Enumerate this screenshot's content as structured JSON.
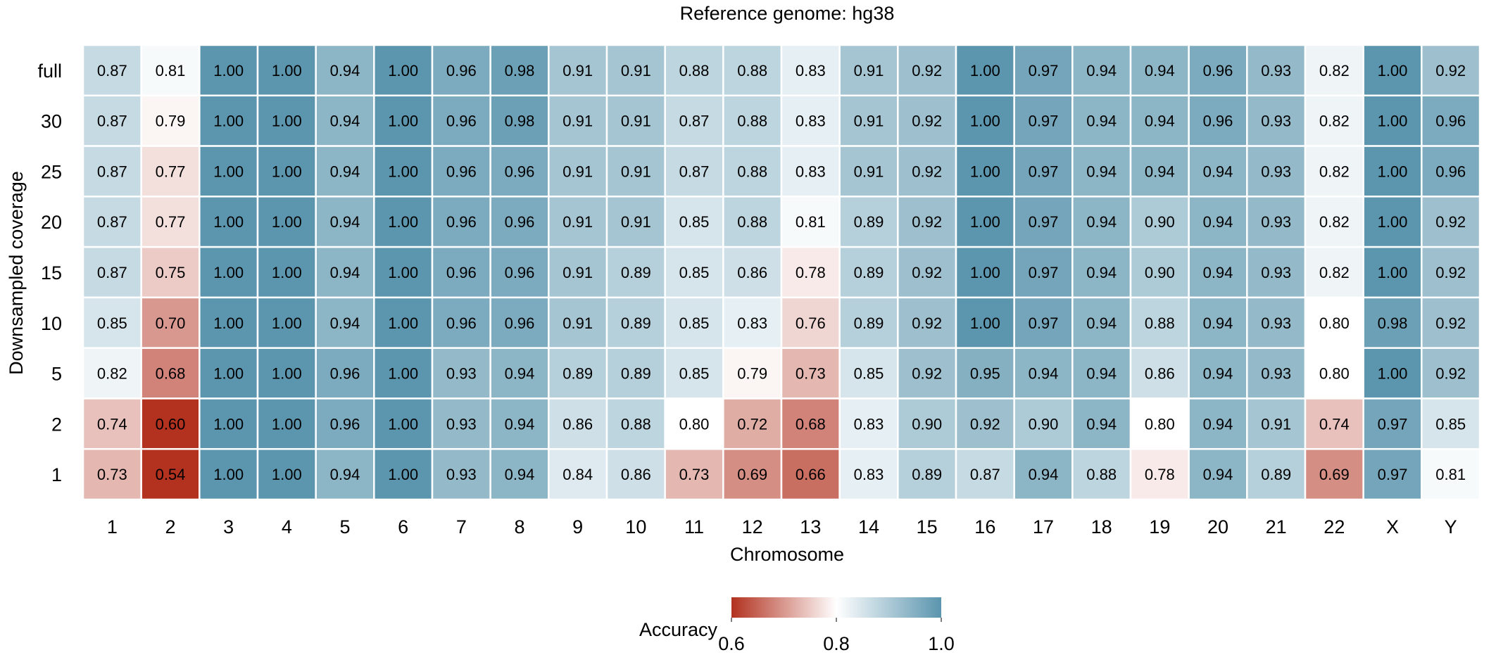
{
  "chart_data": {
    "type": "heatmap",
    "title": "Reference genome: hg38",
    "xlabel": "Chromosome",
    "ylabel": "Downsampled coverage",
    "x_categories": [
      "1",
      "2",
      "3",
      "4",
      "5",
      "6",
      "7",
      "8",
      "9",
      "10",
      "11",
      "12",
      "13",
      "14",
      "15",
      "16",
      "17",
      "18",
      "19",
      "20",
      "21",
      "22",
      "X",
      "Y"
    ],
    "y_categories": [
      "full",
      "30",
      "25",
      "20",
      "15",
      "10",
      "5",
      "2",
      "1"
    ],
    "values": [
      [
        0.87,
        0.81,
        1.0,
        1.0,
        0.94,
        1.0,
        0.96,
        0.98,
        0.91,
        0.91,
        0.88,
        0.88,
        0.83,
        0.91,
        0.92,
        1.0,
        0.97,
        0.94,
        0.94,
        0.96,
        0.93,
        0.82,
        1.0,
        0.92
      ],
      [
        0.87,
        0.79,
        1.0,
        1.0,
        0.94,
        1.0,
        0.96,
        0.98,
        0.91,
        0.91,
        0.87,
        0.88,
        0.83,
        0.91,
        0.92,
        1.0,
        0.97,
        0.94,
        0.94,
        0.96,
        0.93,
        0.82,
        1.0,
        0.96
      ],
      [
        0.87,
        0.77,
        1.0,
        1.0,
        0.94,
        1.0,
        0.96,
        0.96,
        0.91,
        0.91,
        0.87,
        0.88,
        0.83,
        0.91,
        0.92,
        1.0,
        0.97,
        0.94,
        0.94,
        0.94,
        0.93,
        0.82,
        1.0,
        0.96
      ],
      [
        0.87,
        0.77,
        1.0,
        1.0,
        0.94,
        1.0,
        0.96,
        0.96,
        0.91,
        0.91,
        0.85,
        0.88,
        0.81,
        0.89,
        0.92,
        1.0,
        0.97,
        0.94,
        0.9,
        0.94,
        0.93,
        0.82,
        1.0,
        0.92
      ],
      [
        0.87,
        0.75,
        1.0,
        1.0,
        0.94,
        1.0,
        0.96,
        0.96,
        0.91,
        0.89,
        0.85,
        0.86,
        0.78,
        0.89,
        0.92,
        1.0,
        0.97,
        0.94,
        0.9,
        0.94,
        0.93,
        0.82,
        1.0,
        0.92
      ],
      [
        0.85,
        0.7,
        1.0,
        1.0,
        0.94,
        1.0,
        0.96,
        0.96,
        0.91,
        0.89,
        0.85,
        0.83,
        0.76,
        0.89,
        0.92,
        1.0,
        0.97,
        0.94,
        0.88,
        0.94,
        0.93,
        0.8,
        0.98,
        0.92
      ],
      [
        0.82,
        0.68,
        1.0,
        1.0,
        0.96,
        1.0,
        0.93,
        0.94,
        0.89,
        0.89,
        0.85,
        0.79,
        0.73,
        0.85,
        0.92,
        0.95,
        0.94,
        0.94,
        0.86,
        0.94,
        0.93,
        0.8,
        1.0,
        0.92
      ],
      [
        0.74,
        0.6,
        1.0,
        1.0,
        0.96,
        1.0,
        0.93,
        0.94,
        0.86,
        0.88,
        0.8,
        0.72,
        0.68,
        0.83,
        0.9,
        0.92,
        0.9,
        0.94,
        0.8,
        0.94,
        0.91,
        0.74,
        0.97,
        0.85
      ],
      [
        0.73,
        0.54,
        1.0,
        1.0,
        0.94,
        1.0,
        0.93,
        0.94,
        0.84,
        0.86,
        0.73,
        0.69,
        0.66,
        0.83,
        0.89,
        0.87,
        0.94,
        0.88,
        0.78,
        0.94,
        0.89,
        0.69,
        0.97,
        0.81
      ]
    ],
    "value_format": "0.00",
    "colorbar": {
      "label": "Accuracy",
      "ticks": [
        "0.6",
        "0.8",
        "1.0"
      ],
      "range": [
        0.6,
        1.0
      ],
      "center": 0.8,
      "colors": {
        "low": "#b2311f",
        "mid": "#ffffff",
        "high": "#5b95ae"
      },
      "placement": "bottom-center"
    },
    "grid": false
  }
}
